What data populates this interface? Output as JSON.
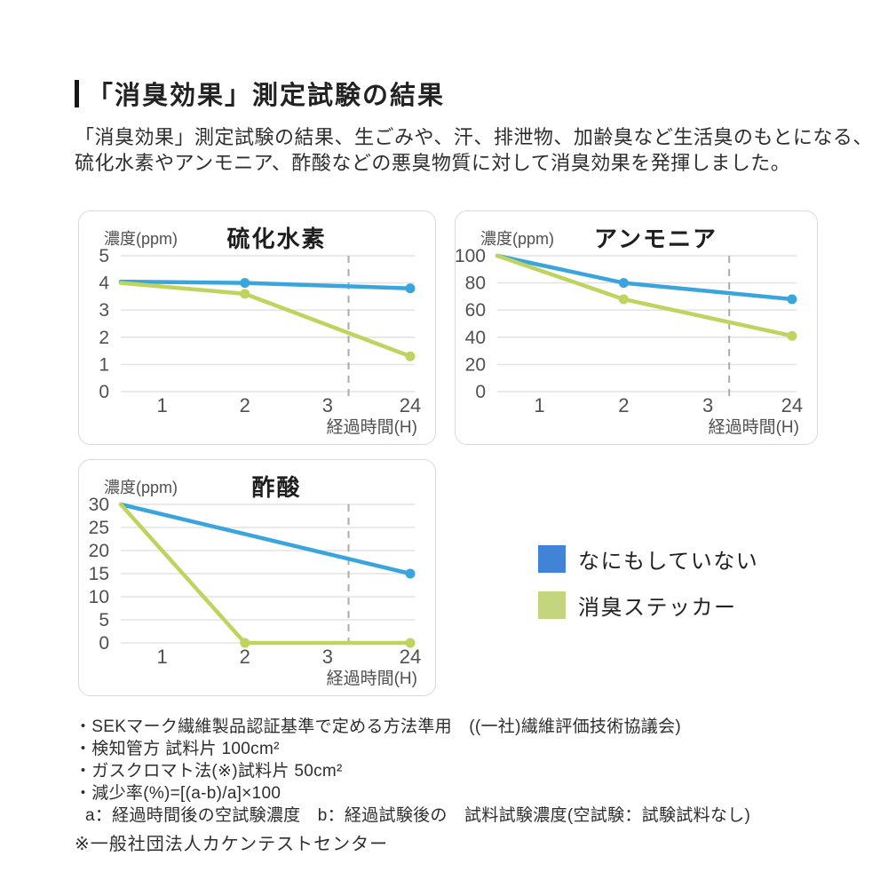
{
  "header": {
    "title": "「消臭効果」測定試験の結果",
    "intro_lines": [
      "「消臭効果」測定試験の結果、生ごみや、汗、排泄物、加齢臭など生活臭のもとになる、",
      "硫化水素やアンモニア、酢酸などの悪臭物質に対して消臭効果を発揮しました。"
    ]
  },
  "legend": {
    "items": [
      {
        "key": "untreated",
        "label": "なにもしていない",
        "swatch_color": "#4183d7",
        "line_color": "#39a5dc"
      },
      {
        "key": "sticker",
        "label": "消臭ステッカー",
        "swatch_color": "#c3d67d",
        "line_color": "#bfd35e"
      }
    ]
  },
  "chart_data": [
    {
      "id": "hydrogen-sulfide",
      "type": "line",
      "title": "硫化水素",
      "ylabel": "濃度(ppm)",
      "xlabel": "経過時間(H)",
      "x_tick_labels": [
        "1",
        "2",
        "3",
        "24"
      ],
      "y_ticks": [
        0,
        1,
        2,
        3,
        4,
        5
      ],
      "ylim": [
        0,
        5
      ],
      "grid": true,
      "time_axis_break_dashed": true,
      "series": [
        {
          "name": "なにもしていない",
          "key": "untreated",
          "points": [
            {
              "h": 0,
              "ppm": 4.05
            },
            {
              "h": 2,
              "ppm": 4.0
            },
            {
              "h": 24,
              "ppm": 3.8
            }
          ]
        },
        {
          "name": "消臭ステッカー",
          "key": "sticker",
          "points": [
            {
              "h": 0,
              "ppm": 4.0
            },
            {
              "h": 2,
              "ppm": 3.6
            },
            {
              "h": 24,
              "ppm": 1.3
            }
          ]
        }
      ]
    },
    {
      "id": "ammonia",
      "type": "line",
      "title": "アンモニア",
      "ylabel": "濃度(ppm)",
      "xlabel": "経過時間(H)",
      "x_tick_labels": [
        "1",
        "2",
        "3",
        "24"
      ],
      "y_ticks": [
        0,
        20,
        40,
        60,
        80,
        100
      ],
      "ylim": [
        0,
        100
      ],
      "grid": true,
      "time_axis_break_dashed": true,
      "series": [
        {
          "name": "なにもしていない",
          "key": "untreated",
          "points": [
            {
              "h": 0,
              "ppm": 100
            },
            {
              "h": 2,
              "ppm": 80
            },
            {
              "h": 24,
              "ppm": 68
            }
          ]
        },
        {
          "name": "消臭ステッカー",
          "key": "sticker",
          "points": [
            {
              "h": 0,
              "ppm": 100
            },
            {
              "h": 2,
              "ppm": 68
            },
            {
              "h": 24,
              "ppm": 41
            }
          ]
        }
      ]
    },
    {
      "id": "acetic-acid",
      "type": "line",
      "title": "酢酸",
      "ylabel": "濃度(ppm)",
      "xlabel": "経過時間(H)",
      "x_tick_labels": [
        "1",
        "2",
        "3",
        "24"
      ],
      "y_ticks": [
        0,
        5,
        10,
        15,
        20,
        25,
        30
      ],
      "ylim": [
        0,
        30
      ],
      "grid": true,
      "time_axis_break_dashed": true,
      "series": [
        {
          "name": "なにもしていない",
          "key": "untreated",
          "points": [
            {
              "h": 0,
              "ppm": 30
            },
            {
              "h": 24,
              "ppm": 15
            }
          ]
        },
        {
          "name": "消臭ステッカー",
          "key": "sticker",
          "points": [
            {
              "h": 0,
              "ppm": 30
            },
            {
              "h": 2,
              "ppm": 0
            },
            {
              "h": 24,
              "ppm": 0
            }
          ]
        }
      ]
    }
  ],
  "footnotes": [
    "・SEKマーク繊維製品認証基準で定める方法準用　((一社)繊維評価技術協議会)",
    "・検知管方 試料片 100cm²",
    "・ガスクロマト法(※)試料片 50cm²",
    "・減少率(%)=[(a-b)/a]×100",
    "a：経過時間後の空試験濃度　b：経過試験後の　試料試験濃度(空試験：試験試料なし)"
  ],
  "source_note": "※一般社団法人カケンテストセンター",
  "style": {
    "grid_color": "#e4e4e4",
    "dashed_line_color": "#ababab",
    "axis_text_color": "#505050",
    "chart_title_color": "#1e1e1e"
  }
}
